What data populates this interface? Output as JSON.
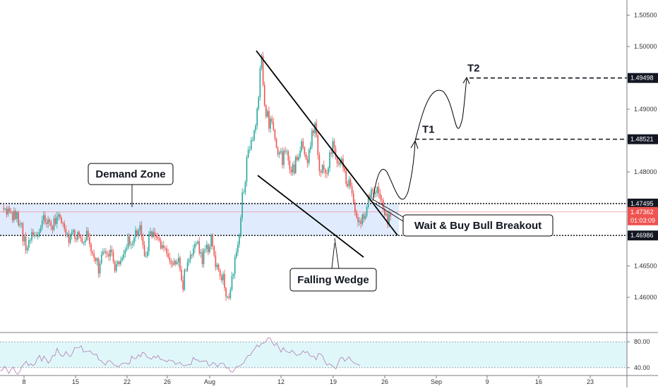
{
  "chart_data": [
    {
      "type": "candlestick",
      "ylim": [
        1.4578,
        1.5078
      ],
      "grid": false,
      "x_ticks": [
        "8",
        "15",
        "22",
        "26",
        "Aug",
        "12",
        "19",
        "26",
        "Sep",
        "9",
        "16",
        "23"
      ],
      "y_ticks": [
        1.46,
        1.465,
        1.47,
        1.475,
        1.48,
        1.485,
        1.49,
        1.495,
        1.5,
        1.505
      ],
      "y_tick_labels": [
        "1.46000",
        "1.46500",
        "1.47000",
        "1.47500",
        "1.48000",
        "1.48500",
        "1.49000",
        "1.49500",
        "1.50000",
        "1.50500"
      ],
      "levels": [
        {
          "name": "resistance",
          "value": 1.47495,
          "label": "1.47495",
          "style": "dotted"
        },
        {
          "name": "support",
          "value": 1.46986,
          "label": "1.46986",
          "style": "dotted"
        },
        {
          "name": "target-2",
          "value": 1.49498,
          "label": "1.49498",
          "style": "dashed",
          "text": "T2"
        },
        {
          "name": "target-1",
          "value": 1.48521,
          "label": "1.48521",
          "style": "dashed",
          "text": "T1"
        }
      ],
      "current_price": {
        "value": 1.47362,
        "label": "1.47362",
        "countdown": "01:03:09",
        "color": "#ef5350"
      },
      "demand_zone": {
        "from": 1.46986,
        "to": 1.47495
      },
      "annotations": [
        "Demand Zone",
        "Falling Wedge",
        "Wait & Buy Bull Breakout"
      ],
      "colors": {
        "up": "#26a69a",
        "down": "#ef5350",
        "zone": "#dbe9fd",
        "price_label_bg": "#131722"
      },
      "price_path": [
        1.4743,
        1.4741,
        1.4741,
        1.4732,
        1.4742,
        1.4737,
        1.4735,
        1.4723,
        1.4738,
        1.4725,
        1.4736,
        1.4715,
        1.4717,
        1.4718,
        1.4689,
        1.4697,
        1.4675,
        1.4679,
        1.4691,
        1.4691,
        1.4704,
        1.4699,
        1.4699,
        1.4698,
        1.4698,
        1.4704,
        1.4711,
        1.4723,
        1.4731,
        1.4719,
        1.4717,
        1.4724,
        1.472,
        1.4713,
        1.4708,
        1.4726,
        1.4717,
        1.4729,
        1.4732,
        1.4727,
        1.4719,
        1.4718,
        1.4709,
        1.4701,
        1.4701,
        1.4687,
        1.4699,
        1.4704,
        1.4707,
        1.4694,
        1.4692,
        1.4704,
        1.4697,
        1.4694,
        1.4687,
        1.4687,
        1.4691,
        1.4706,
        1.4696,
        1.4685,
        1.4673,
        1.467,
        1.4663,
        1.4658,
        1.4662,
        1.4638,
        1.4654,
        1.4668,
        1.4673,
        1.4673,
        1.467,
        1.4669,
        1.4665,
        1.4676,
        1.4672,
        1.4657,
        1.4642,
        1.4653,
        1.4657,
        1.4653,
        1.4659,
        1.4663,
        1.4669,
        1.4675,
        1.4678,
        1.4697,
        1.4684,
        1.4684,
        1.4686,
        1.4695,
        1.4707,
        1.4699,
        1.4706,
        1.4715,
        1.4696,
        1.4683,
        1.4666,
        1.4666,
        1.4673,
        1.4701,
        1.4705,
        1.4696,
        1.4704,
        1.4698,
        1.4696,
        1.4694,
        1.4691,
        1.4678,
        1.4683,
        1.4679,
        1.4678,
        1.467,
        1.4664,
        1.4658,
        1.4654,
        1.4652,
        1.4658,
        1.4653,
        1.4656,
        1.4663,
        1.4644,
        1.4627,
        1.4612,
        1.4644,
        1.4643,
        1.4656,
        1.466,
        1.4668,
        1.4667,
        1.4678,
        1.4685,
        1.4686,
        1.4689,
        1.467,
        1.4672,
        1.4653,
        1.4676,
        1.4677,
        1.4684,
        1.4672,
        1.4681,
        1.4699,
        1.4681,
        1.4667,
        1.4648,
        1.4652,
        1.4644,
        1.4634,
        1.4627,
        1.4637,
        1.4615,
        1.4601,
        1.4601,
        1.4599,
        1.4612,
        1.4634,
        1.4637,
        1.4664,
        1.4672,
        1.4684,
        1.47,
        1.4727,
        1.4767,
        1.4768,
        1.4784,
        1.4823,
        1.4835,
        1.4836,
        1.4851,
        1.4851,
        1.4866,
        1.4874,
        1.4901,
        1.4919,
        1.4965,
        1.4985,
        1.4939,
        1.4906,
        1.4888,
        1.4897,
        1.4869,
        1.4885,
        1.488,
        1.4867,
        1.4853,
        1.4839,
        1.4828,
        1.4831,
        1.4833,
        1.4811,
        1.4834,
        1.4833,
        1.4833,
        1.4818,
        1.4804,
        1.4799,
        1.4812,
        1.4798,
        1.4824,
        1.4819,
        1.4824,
        1.4834,
        1.4849,
        1.4839,
        1.4828,
        1.482,
        1.4814,
        1.4836,
        1.4841,
        1.4866,
        1.4862,
        1.4878,
        1.4859,
        1.4827,
        1.4801,
        1.4799,
        1.4811,
        1.4804,
        1.4798,
        1.4797,
        1.4806,
        1.4831,
        1.4829,
        1.4849,
        1.4838,
        1.4823,
        1.4814,
        1.4812,
        1.4817,
        1.4821,
        1.4806,
        1.4802,
        1.4781,
        1.4777,
        1.4788,
        1.4777,
        1.4766,
        1.4751,
        1.4736,
        1.4728,
        1.472,
        1.4722,
        1.4717,
        1.4732,
        1.4725,
        1.473,
        1.4744,
        1.4763,
        1.4757,
        1.4772,
        1.4771,
        1.4765,
        1.4767,
        1.4776,
        1.4765,
        1.4757,
        1.4755,
        1.4741,
        1.4731,
        1.4733,
        1.4716,
        1.4732,
        1.4729
      ],
      "rsi": {
        "ylim": [
          30,
          90
        ],
        "y_ticks": [
          40,
          80
        ],
        "y_tick_labels": [
          "40.00",
          "80.00"
        ],
        "band": [
          40,
          80
        ],
        "color": "#b07ab0",
        "values": [
          35,
          36,
          42,
          38,
          31,
          37,
          41,
          33,
          30,
          34,
          42,
          46,
          50,
          43,
          46,
          43,
          46,
          54,
          59,
          50,
          58,
          53,
          47,
          51,
          59,
          58,
          70,
          62,
          58,
          58,
          65,
          60,
          57,
          62,
          71,
          71,
          71,
          74,
          64,
          65,
          65,
          66,
          62,
          60,
          61,
          52,
          51,
          47,
          44,
          50,
          51,
          48,
          44,
          43,
          41,
          45,
          47,
          47,
          46,
          46,
          58,
          54,
          54,
          60,
          57,
          64,
          62,
          56,
          55,
          53,
          58,
          55,
          59,
          53,
          52,
          51,
          49,
          52,
          51,
          50,
          45,
          47,
          48,
          44,
          43,
          44,
          45,
          45,
          56,
          52,
          52,
          49,
          50,
          50,
          51,
          43,
          44,
          48,
          46,
          41,
          46,
          47,
          46,
          39,
          40,
          34,
          33,
          38,
          42,
          42,
          45,
          47,
          54,
          59,
          59,
          65,
          69,
          75,
          72,
          77,
          78,
          80,
          86,
          86,
          79,
          74,
          78,
          71,
          64,
          71,
          66,
          64,
          63,
          67,
          63,
          59,
          60,
          61,
          66,
          63,
          65,
          59,
          57,
          58,
          52,
          62,
          61,
          58,
          49,
          44,
          46,
          44,
          41,
          38,
          47,
          55,
          56,
          50,
          53,
          57,
          51,
          48,
          46,
          45,
          43
        ]
      }
    }
  ]
}
